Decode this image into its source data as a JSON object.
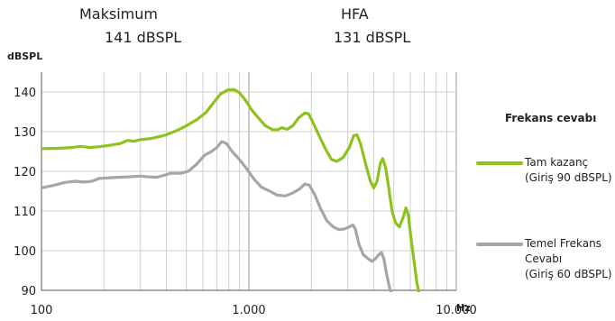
{
  "header": {
    "max_label": "Maksimum",
    "max_value": "141 dBSPL",
    "hfa_label": "HFA",
    "hfa_value": "131 dBSPL"
  },
  "chart_data": {
    "type": "line",
    "ylabel": "dBSPL",
    "xlabel": "Hz",
    "xscale": "log",
    "xlim": [
      100,
      10000
    ],
    "ylim": [
      90,
      140
    ],
    "yticks": [
      90,
      100,
      110,
      120,
      130,
      140
    ],
    "ytick_labels": [
      "90",
      "100",
      "110",
      "120",
      "130",
      "140"
    ],
    "xticks": [
      100,
      1000,
      10000
    ],
    "xtick_labels": [
      "100",
      "1.000",
      "10.000"
    ],
    "grid": true,
    "legend_title": "Frekans cevabı",
    "legend_position": "right",
    "series": [
      {
        "name": "Tam kazanç (Giriş 90 dBSPL)",
        "name_lines": [
          "Tam kazanç",
          "(Giriş 90 dBSPL)"
        ],
        "color": "#8dc21f",
        "points": [
          [
            100,
            125.7
          ],
          [
            120,
            125.8
          ],
          [
            140,
            126.0
          ],
          [
            155,
            126.3
          ],
          [
            170,
            126.0
          ],
          [
            190,
            126.2
          ],
          [
            210,
            126.5
          ],
          [
            240,
            127.0
          ],
          [
            260,
            127.8
          ],
          [
            280,
            127.6
          ],
          [
            300,
            128.0
          ],
          [
            330,
            128.2
          ],
          [
            360,
            128.6
          ],
          [
            400,
            129.2
          ],
          [
            450,
            130.3
          ],
          [
            500,
            131.5
          ],
          [
            560,
            133.0
          ],
          [
            620,
            134.8
          ],
          [
            680,
            137.5
          ],
          [
            730,
            139.5
          ],
          [
            790,
            140.5
          ],
          [
            850,
            140.6
          ],
          [
            900,
            139.8
          ],
          [
            960,
            138.0
          ],
          [
            1030,
            135.5
          ],
          [
            1110,
            133.5
          ],
          [
            1200,
            131.5
          ],
          [
            1300,
            130.5
          ],
          [
            1380,
            130.5
          ],
          [
            1440,
            131.0
          ],
          [
            1530,
            130.6
          ],
          [
            1630,
            131.5
          ],
          [
            1740,
            133.5
          ],
          [
            1860,
            134.7
          ],
          [
            1940,
            134.5
          ],
          [
            2050,
            132.0
          ],
          [
            2200,
            128.5
          ],
          [
            2350,
            125.5
          ],
          [
            2500,
            123.0
          ],
          [
            2650,
            122.5
          ],
          [
            2850,
            123.5
          ],
          [
            3050,
            126.0
          ],
          [
            3200,
            129.0
          ],
          [
            3320,
            129.2
          ],
          [
            3450,
            127.0
          ],
          [
            3650,
            122.0
          ],
          [
            3850,
            117.5
          ],
          [
            4000,
            115.8
          ],
          [
            4150,
            117.5
          ],
          [
            4300,
            122.0
          ],
          [
            4420,
            123.2
          ],
          [
            4560,
            121.0
          ],
          [
            4720,
            116.0
          ],
          [
            4900,
            110.0
          ],
          [
            5100,
            107.0
          ],
          [
            5320,
            106.0
          ],
          [
            5550,
            108.5
          ],
          [
            5720,
            110.8
          ],
          [
            5870,
            109.0
          ],
          [
            6050,
            103.0
          ],
          [
            6250,
            97.5
          ],
          [
            6450,
            92.0
          ],
          [
            6600,
            89.5
          ]
        ]
      },
      {
        "name": "Temel Frekans Cevabı (Giriş 60 dBSPL)",
        "name_lines": [
          "Temel Frekans",
          "Cevabı",
          "(Giriş 60 dBSPL)"
        ],
        "color": "#a6a6a6",
        "points": [
          [
            100,
            115.8
          ],
          [
            115,
            116.5
          ],
          [
            130,
            117.2
          ],
          [
            145,
            117.5
          ],
          [
            160,
            117.3
          ],
          [
            175,
            117.5
          ],
          [
            190,
            118.2
          ],
          [
            220,
            118.4
          ],
          [
            260,
            118.6
          ],
          [
            300,
            118.8
          ],
          [
            330,
            118.6
          ],
          [
            360,
            118.5
          ],
          [
            390,
            119.0
          ],
          [
            420,
            119.5
          ],
          [
            470,
            119.5
          ],
          [
            510,
            120.0
          ],
          [
            560,
            121.8
          ],
          [
            610,
            124.0
          ],
          [
            660,
            125.0
          ],
          [
            700,
            126.0
          ],
          [
            740,
            127.5
          ],
          [
            780,
            127.0
          ],
          [
            830,
            125.0
          ],
          [
            900,
            123.0
          ],
          [
            980,
            120.5
          ],
          [
            1060,
            118.0
          ],
          [
            1150,
            116.0
          ],
          [
            1260,
            115.0
          ],
          [
            1370,
            114.0
          ],
          [
            1500,
            113.8
          ],
          [
            1620,
            114.5
          ],
          [
            1750,
            115.5
          ],
          [
            1860,
            116.8
          ],
          [
            1960,
            116.5
          ],
          [
            2080,
            114.0
          ],
          [
            2220,
            110.5
          ],
          [
            2380,
            107.5
          ],
          [
            2550,
            106.0
          ],
          [
            2720,
            105.3
          ],
          [
            2900,
            105.5
          ],
          [
            3050,
            106.0
          ],
          [
            3170,
            106.5
          ],
          [
            3260,
            105.5
          ],
          [
            3400,
            101.5
          ],
          [
            3560,
            99.0
          ],
          [
            3750,
            98.0
          ],
          [
            3920,
            97.3
          ],
          [
            4080,
            98.0
          ],
          [
            4230,
            99.0
          ],
          [
            4360,
            99.5
          ],
          [
            4470,
            98.0
          ],
          [
            4600,
            94.5
          ],
          [
            4750,
            91.0
          ],
          [
            4850,
            89.5
          ]
        ]
      }
    ]
  }
}
